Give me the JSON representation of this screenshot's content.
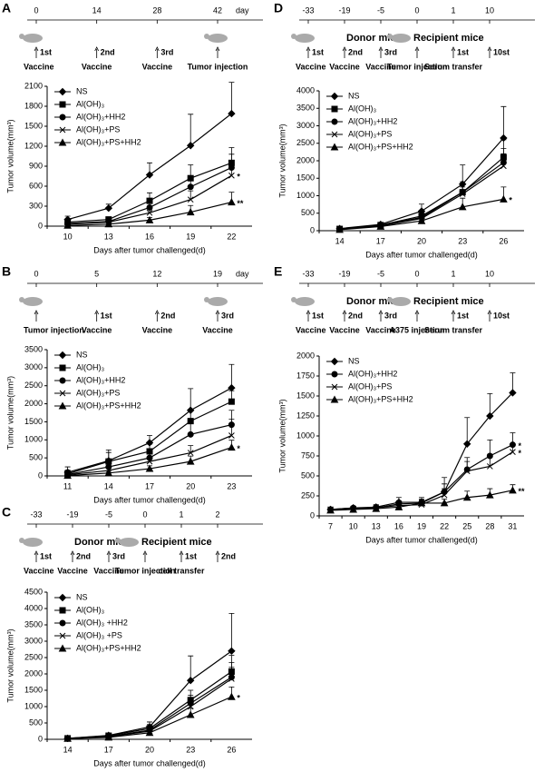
{
  "chart_data": [
    {
      "type": "line",
      "panel": "A",
      "timeline": {
        "days": [
          0,
          14,
          28,
          42
        ],
        "day_unit": "day",
        "events": [
          {
            "sup": "1st",
            "label": "Vaccine"
          },
          {
            "sup": "2nd",
            "label": "Vaccine"
          },
          {
            "sup": "3rd",
            "label": "Vaccine"
          },
          {
            "label": "Tumor injection"
          }
        ]
      },
      "y_label": "Tumor volume(mm³)",
      "x_label": "Days after tumor challenged(d)",
      "categories": [
        "10",
        "13",
        "16",
        "19",
        "22"
      ],
      "ylim": [
        0,
        2100
      ],
      "yticks": [
        0,
        300,
        600,
        900,
        1200,
        1500,
        1800,
        2100
      ],
      "series": [
        {
          "name": "NS",
          "marker": "diamond",
          "color": "#000000",
          "values": [
            100,
            270,
            770,
            1210,
            1690
          ],
          "errors": [
            50,
            60,
            180,
            470,
            470
          ]
        },
        {
          "name": "Al(OH)₃",
          "marker": "square",
          "color": "#000000",
          "values": [
            60,
            100,
            380,
            720,
            950
          ],
          "errors": [
            30,
            40,
            120,
            200,
            230
          ]
        },
        {
          "name": "Al(OH)₃+HH2",
          "marker": "circle",
          "color": "#000000",
          "values": [
            40,
            70,
            280,
            590,
            880
          ],
          "errors": [
            20,
            40,
            100,
            150,
            200
          ]
        },
        {
          "name": "Al(OH)₃+PS",
          "marker": "x",
          "color": "#000000",
          "values": [
            30,
            60,
            200,
            400,
            760
          ],
          "errors": [
            20,
            30,
            80,
            130,
            150
          ],
          "end_label": "*"
        },
        {
          "name": "Al(OH)₃+PS+HH2",
          "marker": "triangle",
          "color": "#000000",
          "values": [
            10,
            30,
            90,
            210,
            360
          ],
          "errors": [
            10,
            20,
            40,
            100,
            150
          ],
          "end_label": "**"
        }
      ]
    },
    {
      "type": "line",
      "panel": "B",
      "timeline": {
        "days": [
          0,
          5,
          12,
          19
        ],
        "day_unit": "day",
        "events": [
          {
            "label": "Tumor injection"
          },
          {
            "sup": "1st",
            "label": "Vaccine"
          },
          {
            "sup": "2nd",
            "label": "Vaccine"
          },
          {
            "sup": "3rd",
            "label": "Vaccine"
          }
        ]
      },
      "y_label": "Tumor volume(mm³)",
      "x_label": "Days after tumor challenged(d)",
      "categories": [
        "11",
        "14",
        "17",
        "20",
        "23"
      ],
      "ylim": [
        0,
        3500
      ],
      "yticks": [
        0,
        500,
        1000,
        1500,
        2000,
        2500,
        3000,
        3500
      ],
      "series": [
        {
          "name": "NS",
          "marker": "diamond",
          "color": "#000000",
          "values": [
            100,
            420,
            920,
            1820,
            2440
          ],
          "errors": [
            150,
            300,
            200,
            600,
            650
          ]
        },
        {
          "name": "Al(OH)₃",
          "marker": "square",
          "color": "#000000",
          "values": [
            60,
            400,
            680,
            1520,
            2060
          ],
          "errors": [
            100,
            250,
            200,
            300,
            300
          ]
        },
        {
          "name": "Al(OH)₃+HH2",
          "marker": "circle",
          "color": "#000000",
          "values": [
            40,
            250,
            500,
            1150,
            1420
          ],
          "errors": [
            60,
            150,
            150,
            300,
            400
          ]
        },
        {
          "name": "Al(OH)₃+PS",
          "marker": "x",
          "color": "#000000",
          "values": [
            30,
            150,
            400,
            640,
            1120
          ],
          "errors": [
            50,
            100,
            100,
            200,
            450
          ]
        },
        {
          "name": "Al(OH)₃+PS+HH2",
          "marker": "triangle",
          "color": "#000000",
          "values": [
            10,
            80,
            200,
            400,
            790
          ],
          "errors": [
            30,
            50,
            80,
            150,
            200
          ],
          "end_label": "*"
        }
      ]
    },
    {
      "type": "line",
      "panel": "C",
      "timeline": {
        "days": [
          -33,
          -19,
          -5,
          0,
          1,
          2
        ],
        "donor_label": "Donor mice",
        "recipient_label": "Recipient mice",
        "events": [
          {
            "sup": "1st",
            "label": "Vaccine"
          },
          {
            "sup": "2nd",
            "label": "Vaccine"
          },
          {
            "sup": "3rd",
            "label": "Vaccine"
          },
          {
            "label": "Tumor injection"
          },
          {
            "sup": "1st",
            "label": "cell transfer"
          },
          {
            "sup": "2nd"
          }
        ]
      },
      "y_label": "Tumor volume(mm³)",
      "x_label": "Days after tumor challenged(d)",
      "categories": [
        "14",
        "17",
        "20",
        "23",
        "26"
      ],
      "ylim": [
        0,
        4500
      ],
      "yticks": [
        0,
        500,
        1000,
        1500,
        2000,
        2500,
        3000,
        3500,
        4000,
        4500
      ],
      "series": [
        {
          "name": "NS",
          "marker": "diamond",
          "color": "#000000",
          "values": [
            30,
            120,
            380,
            1800,
            2700
          ],
          "errors": [
            20,
            60,
            150,
            750,
            1150
          ]
        },
        {
          "name": "Al(OH)₃",
          "marker": "square",
          "color": "#000000",
          "values": [
            30,
            110,
            330,
            1200,
            2070
          ],
          "errors": [
            20,
            50,
            120,
            300,
            500
          ]
        },
        {
          "name": "Al(OH)₃ +HH2",
          "marker": "circle",
          "color": "#000000",
          "values": [
            20,
            90,
            280,
            1100,
            1900
          ],
          "errors": [
            15,
            40,
            100,
            250,
            450
          ]
        },
        {
          "name": "Al(OH)₃ +PS",
          "marker": "x",
          "color": "#000000",
          "values": [
            20,
            80,
            250,
            1000,
            1850
          ],
          "errors": [
            15,
            40,
            100,
            200,
            350
          ]
        },
        {
          "name": "Al(OH)₃+PS+HH2",
          "marker": "triangle",
          "color": "#000000",
          "values": [
            20,
            60,
            200,
            750,
            1300
          ],
          "errors": [
            10,
            30,
            80,
            200,
            300
          ],
          "end_label": "*"
        }
      ]
    },
    {
      "type": "line",
      "panel": "D",
      "timeline": {
        "days": [
          -33,
          -19,
          -5,
          0,
          1,
          10
        ],
        "donor_label": "Donor mice",
        "recipient_label": "Recipient mice",
        "events": [
          {
            "sup": "1st",
            "label": "Vaccine"
          },
          {
            "sup": "2nd",
            "label": "Vaccine"
          },
          {
            "sup": "3rd",
            "label": "Vaccine"
          },
          {
            "label": "Tumor injection"
          },
          {
            "sup": "1st",
            "label": "Serum transfer"
          },
          {
            "sup": "10st"
          }
        ]
      },
      "y_label": "Tumor volume(mm³)",
      "x_label": "Days after tumor challenged(d)",
      "categories": [
        "14",
        "17",
        "20",
        "23",
        "26"
      ],
      "ylim": [
        0,
        4000
      ],
      "yticks": [
        0,
        500,
        1000,
        1500,
        2000,
        2500,
        3000,
        3500,
        4000
      ],
      "series": [
        {
          "name": "NS",
          "marker": "diamond",
          "color": "#000000",
          "values": [
            60,
            180,
            560,
            1330,
            2650
          ],
          "errors": [
            20,
            50,
            200,
            550,
            900
          ]
        },
        {
          "name": "Al(OH)₃",
          "marker": "square",
          "color": "#000000",
          "values": [
            50,
            160,
            420,
            1100,
            2100
          ],
          "errors": [
            20,
            40,
            150,
            300,
            500
          ]
        },
        {
          "name": "Al(OH)₃+HH2",
          "marker": "circle",
          "color": "#000000",
          "values": [
            40,
            150,
            380,
            1100,
            1950
          ],
          "errors": [
            15,
            40,
            120,
            250,
            400
          ]
        },
        {
          "name": "Al(OH)₃+PS",
          "marker": "x",
          "color": "#000000",
          "values": [
            40,
            140,
            350,
            1050,
            1850
          ],
          "errors": [
            15,
            40,
            100,
            200,
            350
          ]
        },
        {
          "name": "Al(OH)₃+PS+HH2",
          "marker": "triangle",
          "color": "#000000",
          "values": [
            30,
            120,
            280,
            680,
            900
          ],
          "errors": [
            10,
            30,
            100,
            250,
            350
          ],
          "end_label": "*"
        }
      ]
    },
    {
      "type": "line",
      "panel": "E",
      "timeline": {
        "days": [
          -33,
          -19,
          -5,
          0,
          1,
          10
        ],
        "donor_label": "Donor mice",
        "recipient_label": "Recipient mice",
        "events": [
          {
            "sup": "1st",
            "label": "Vaccine"
          },
          {
            "sup": "2nd",
            "label": "Vaccine"
          },
          {
            "sup": "3rd",
            "label": "Vaccine"
          },
          {
            "label": "A375 injection"
          },
          {
            "sup": "1st",
            "label": "Serum transfer"
          },
          {
            "sup": "10st"
          }
        ]
      },
      "y_label": "Tumor volume(mm³)",
      "x_label": "Days after tumor challenged(d)",
      "categories": [
        "7",
        "10",
        "13",
        "16",
        "19",
        "22",
        "25",
        "28",
        "31"
      ],
      "ylim": [
        0,
        2000
      ],
      "yticks": [
        0,
        250,
        500,
        750,
        1000,
        1250,
        1500,
        1750,
        2000
      ],
      "series": [
        {
          "name": "NS",
          "marker": "diamond",
          "color": "#000000",
          "values": [
            80,
            100,
            110,
            170,
            170,
            300,
            900,
            1250,
            1540
          ],
          "errors": [
            30,
            20,
            30,
            60,
            60,
            180,
            330,
            280,
            250
          ]
        },
        {
          "name": "Al(OH)₃+HH2",
          "marker": "circle",
          "color": "#000000",
          "values": [
            80,
            100,
            100,
            150,
            160,
            300,
            580,
            750,
            890
          ],
          "errors": [
            20,
            20,
            20,
            40,
            50,
            100,
            150,
            200,
            150
          ],
          "end_label": "*"
        },
        {
          "name": "Al(OH)₃+PS",
          "marker": "x",
          "color": "#000000",
          "values": [
            80,
            90,
            100,
            130,
            140,
            260,
            560,
            620,
            800
          ],
          "errors": [
            20,
            20,
            20,
            40,
            50,
            80,
            120,
            150,
            100
          ],
          "end_label": "*"
        },
        {
          "name": "Al(OH)₃+PS+HH2",
          "marker": "triangle",
          "color": "#000000",
          "values": [
            70,
            80,
            90,
            110,
            160,
            160,
            230,
            260,
            320
          ],
          "errors": [
            20,
            20,
            20,
            30,
            40,
            50,
            80,
            80,
            70
          ],
          "end_label": "**"
        }
      ]
    }
  ]
}
